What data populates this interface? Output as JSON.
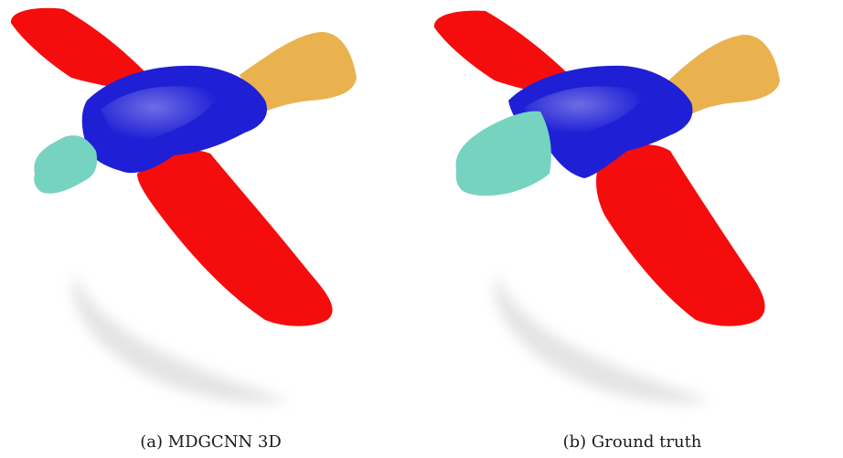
{
  "figure": {
    "panels": [
      {
        "caption": "(a) MDGCNN 3D",
        "colors": {
          "wing": "#f50d0d",
          "fuselage": "#1f1fd6",
          "nose": "#76d3bf",
          "tail": "#e9b24f",
          "shadow": "#d9d9d9"
        }
      },
      {
        "caption": "(b) Ground truth",
        "colors": {
          "wing": "#f50d0d",
          "fuselage": "#1f1fd6",
          "nose": "#76d3bf",
          "tail": "#e9b24f",
          "shadow": "#d9d9d9"
        }
      }
    ]
  }
}
